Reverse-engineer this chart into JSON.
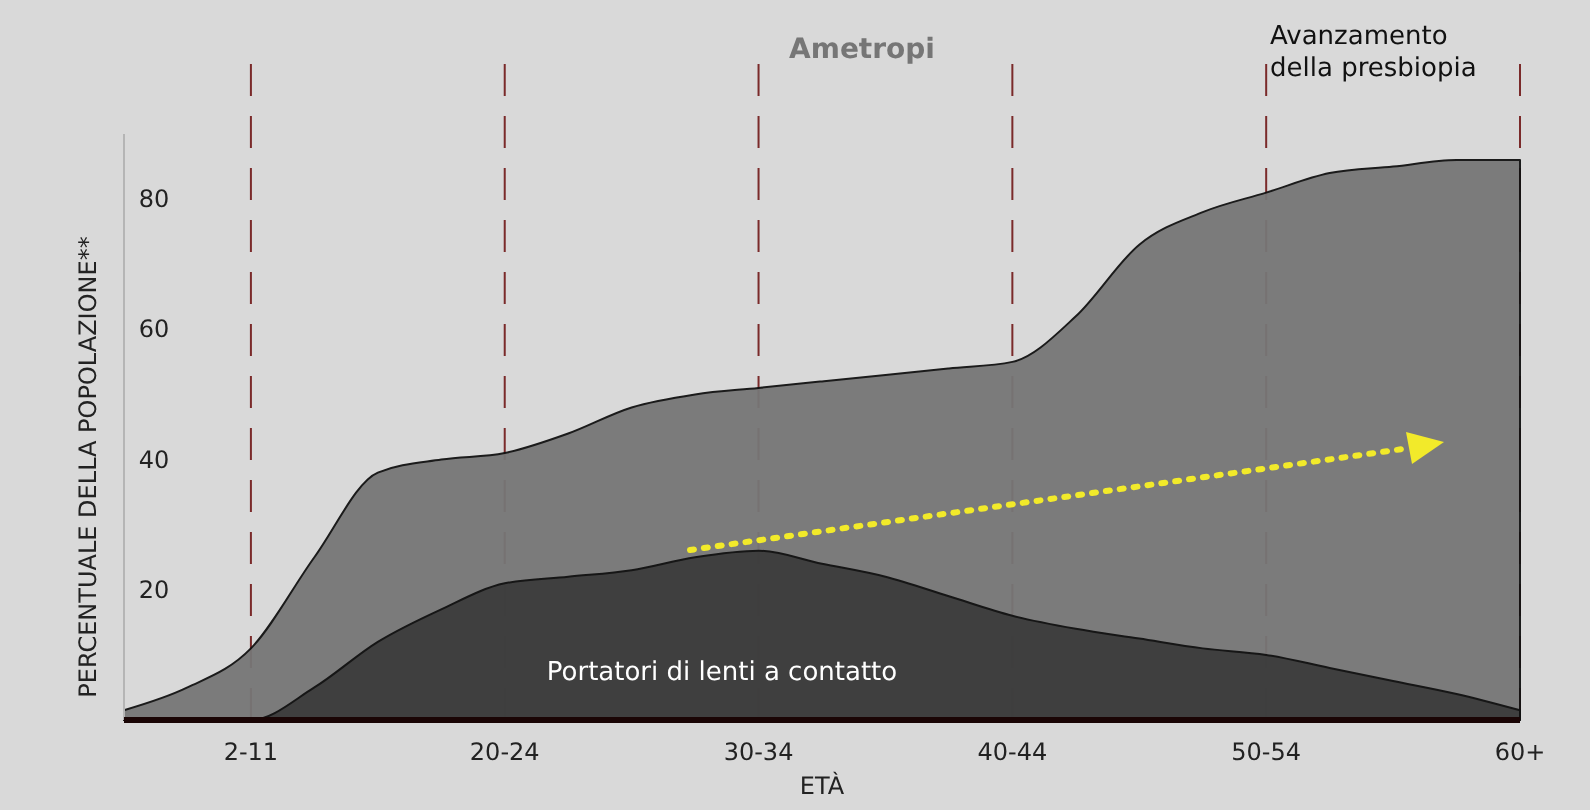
{
  "chart_data": {
    "type": "area",
    "xlabel": "ETÀ",
    "ylabel": "PERCENTUALE DELLA POPOLAZIONE**",
    "categories": [
      null,
      null,
      "2-11",
      null,
      null,
      null,
      "20-24",
      null,
      null,
      null,
      "30-34",
      null,
      null,
      null,
      "40-44",
      null,
      null,
      null,
      "50-54",
      null,
      null,
      null,
      "60+"
    ],
    "ylim": [
      0,
      90
    ],
    "yticks": [
      20,
      40,
      60,
      80
    ],
    "grid": "x",
    "annotations": [
      "Avanzamento della presbiopia"
    ],
    "series": [
      {
        "name": "Ametropi",
        "color": "#767676",
        "values": [
          1.5,
          5,
          11,
          25,
          38,
          40,
          41,
          44,
          48,
          50,
          51,
          52,
          53,
          54,
          55,
          62,
          73,
          78,
          81,
          84,
          85,
          86,
          86
        ]
      },
      {
        "name": "Portatori di lenti a contatto",
        "color": "#3c3c3c",
        "values": [
          0,
          0,
          0,
          5,
          12,
          17,
          21,
          22,
          23,
          25,
          26,
          24,
          22,
          19,
          16,
          14,
          12.5,
          11,
          10,
          8,
          6,
          4,
          1.5
        ]
      }
    ]
  }
}
